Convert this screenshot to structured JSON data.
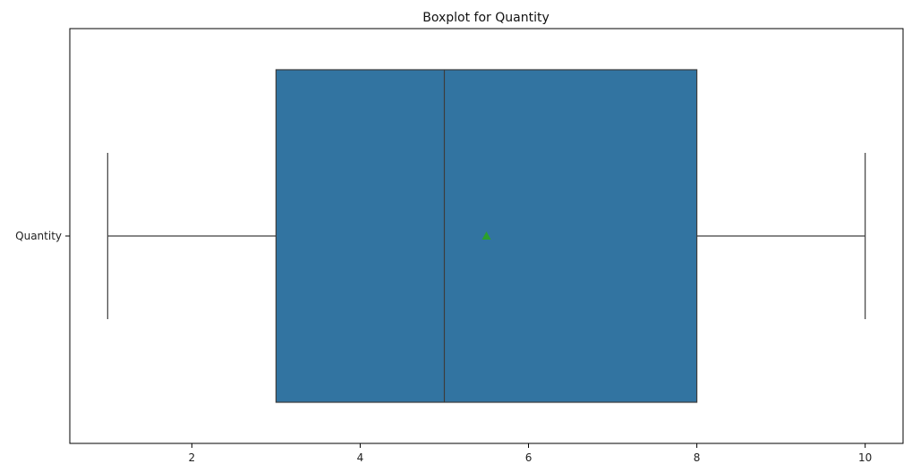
{
  "chart_data": {
    "type": "boxplot",
    "title": "Boxplot for Quantity",
    "xlabel": "",
    "ylabel": "",
    "orientation": "horizontal",
    "categories": [
      "Quantity"
    ],
    "box": {
      "category": "Quantity",
      "whisker_low": 1,
      "q1": 3,
      "median": 5,
      "q3": 8,
      "whisker_high": 10,
      "mean": 5.5
    },
    "xlim": [
      0.55,
      10.45
    ],
    "xticks": [
      2,
      4,
      6,
      8,
      10
    ],
    "xtick_labels": [
      "2",
      "4",
      "6",
      "8",
      "10"
    ],
    "grid": false,
    "colors": {
      "box_fill": "#3274a1",
      "box_edge": "#3d3d3d",
      "whisker": "#3d3d3d",
      "mean_marker": "#2ca02c"
    }
  }
}
